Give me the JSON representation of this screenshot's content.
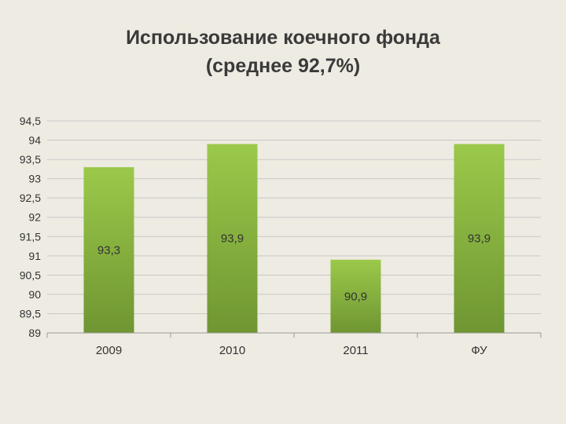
{
  "title_line1": "Использование коечного фонда",
  "title_line2": "(среднее 92,7%)",
  "chart_data": {
    "type": "bar",
    "title": "Использование коечного фонда (среднее 92,7%)",
    "categories": [
      "2009",
      "2010",
      "2011",
      "ФУ"
    ],
    "values": [
      93.3,
      93.9,
      90.9,
      93.9
    ],
    "data_labels": [
      "93,3",
      "93,9",
      "90,9",
      "93,9"
    ],
    "ylim": [
      89,
      94.5
    ],
    "yticks": [
      "89",
      "89,5",
      "90",
      "90,5",
      "91",
      "91,5",
      "92",
      "92,5",
      "93",
      "93,5",
      "94",
      "94,5"
    ],
    "ytick_values": [
      89,
      89.5,
      90,
      90.5,
      91,
      91.5,
      92,
      92.5,
      93,
      93.5,
      94,
      94.5
    ],
    "grid": true,
    "legend": "none",
    "bar_color_top": "#9bc94a",
    "bar_color_bottom": "#6f9632",
    "gridline_color": "#c8c8c8"
  }
}
